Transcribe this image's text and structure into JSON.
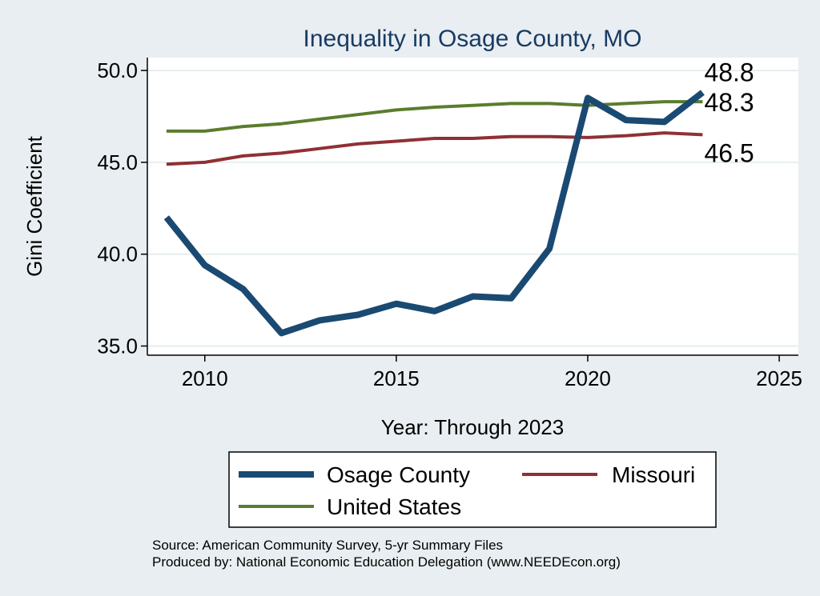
{
  "chart_data": {
    "type": "line",
    "title": "Inequality in Osage County, MO",
    "xlabel": "Year: Through 2023",
    "ylabel": "Gini Coefficient",
    "xlim": [
      2008.5,
      2025.5
    ],
    "ylim": [
      34.5,
      50.7
    ],
    "x_ticks": [
      2010,
      2015,
      2020,
      2025
    ],
    "y_ticks": [
      35.0,
      40.0,
      45.0,
      50.0
    ],
    "y_tick_labels": [
      "35.0",
      "40.0",
      "45.0",
      "50.0"
    ],
    "grid": true,
    "x": [
      2009,
      2010,
      2011,
      2012,
      2013,
      2014,
      2015,
      2016,
      2017,
      2018,
      2019,
      2020,
      2021,
      2022,
      2023
    ],
    "series": [
      {
        "name": "Osage County",
        "color": "#1a4a72",
        "width": 8,
        "values": [
          42.0,
          39.4,
          38.1,
          35.7,
          36.4,
          36.7,
          37.3,
          36.9,
          37.7,
          37.6,
          40.3,
          48.5,
          47.3,
          47.2,
          48.8
        ],
        "end_label": "48.8"
      },
      {
        "name": "Missouri",
        "color": "#903035",
        "width": 4,
        "values": [
          44.9,
          45.0,
          45.35,
          45.5,
          45.75,
          46.0,
          46.15,
          46.3,
          46.3,
          46.4,
          46.4,
          46.35,
          46.45,
          46.6,
          46.5
        ],
        "end_label": "46.5"
      },
      {
        "name": "United States",
        "color": "#5a7d2e",
        "width": 4,
        "values": [
          46.7,
          46.7,
          46.95,
          47.1,
          47.35,
          47.6,
          47.85,
          48.0,
          48.1,
          48.2,
          48.2,
          48.1,
          48.2,
          48.3,
          48.3
        ],
        "end_label": "48.3"
      }
    ],
    "legend_position": "bottom"
  },
  "source": {
    "line1": "Source: American Community Survey, 5-yr Summary Files",
    "line2": "Produced by: National Economic Education Delegation (www.NEEDEcon.org)"
  },
  "colors": {
    "background": "#e8eef1",
    "plot_background": "#ffffff",
    "grid": "#e6eef0"
  }
}
